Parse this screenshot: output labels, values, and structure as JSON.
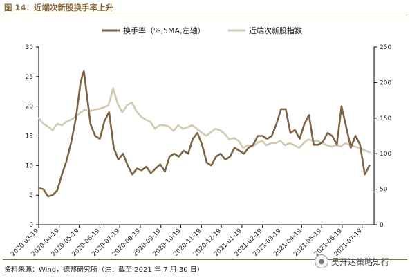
{
  "title": "图 14：近端次新股换手率上升",
  "source": "资料来源：Wind，德邦研究所（注：截至 2021 年 7 月 30 日）",
  "watermark": {
    "text": "吴开达策略知行",
    "icon": "wechat-icon"
  },
  "colors": {
    "turnover": "#7d6341",
    "index": "#d2caaf",
    "accent": "#8a6a3b"
  },
  "chart_data": {
    "type": "line",
    "x": [
      "2020-03-19",
      "2020-04-19",
      "2020-05-19",
      "2020-06-19",
      "2020-07-19",
      "2020-08-19",
      "2020-09-19",
      "2020-10-19",
      "2020-11-19",
      "2020-12-19",
      "2021-01-19",
      "2021-02-19",
      "2021-03-19",
      "2021-04-19",
      "2021-05-19",
      "2021-06-19",
      "2021-07-19"
    ],
    "xlabels": [
      "2020-03-19",
      "2020-04-19",
      "2020-05-19",
      "2020-06-19",
      "2020-07-19",
      "2020-08-19",
      "2020-09-19",
      "2020-10-19",
      "2020-11-19",
      "2020-12-19",
      "2021-01-19",
      "2021-02-19",
      "2021-03-19",
      "2021-04-19",
      "2021-05-19",
      "2021-06-19",
      "2021-07-19"
    ],
    "y_left": {
      "ticks": [
        0,
        5,
        10,
        15,
        20,
        25,
        30
      ],
      "lim": [
        0,
        30
      ]
    },
    "y_right": {
      "ticks": [
        0,
        50,
        100,
        150,
        200,
        250
      ],
      "lim": [
        0,
        250
      ]
    },
    "grid": false,
    "legend": "top",
    "series": [
      {
        "name": "换手率（%,5MA,左轴）",
        "axis": "left",
        "x": [
          "2020-03-19",
          "2020-03-26",
          "2020-04-02",
          "2020-04-09",
          "2020-04-16",
          "2020-04-23",
          "2020-04-30",
          "2020-05-07",
          "2020-05-14",
          "2020-05-21",
          "2020-05-26",
          "2020-05-31",
          "2020-06-05",
          "2020-06-12",
          "2020-06-19",
          "2020-06-26",
          "2020-07-03",
          "2020-07-10",
          "2020-07-17",
          "2020-07-24",
          "2020-07-31",
          "2020-08-07",
          "2020-08-14",
          "2020-08-21",
          "2020-08-28",
          "2020-09-04",
          "2020-09-11",
          "2020-09-18",
          "2020-09-25",
          "2020-10-02",
          "2020-10-09",
          "2020-10-16",
          "2020-10-23",
          "2020-10-30",
          "2020-11-06",
          "2020-11-13",
          "2020-11-20",
          "2020-11-27",
          "2020-12-04",
          "2020-12-11",
          "2020-12-18",
          "2020-12-25",
          "2021-01-01",
          "2021-01-08",
          "2021-01-15",
          "2021-01-22",
          "2021-01-29",
          "2021-02-05",
          "2021-02-12",
          "2021-02-19",
          "2021-02-26",
          "2021-03-05",
          "2021-03-12",
          "2021-03-19",
          "2021-03-26",
          "2021-04-02",
          "2021-04-09",
          "2021-04-16",
          "2021-04-23",
          "2021-04-30",
          "2021-05-07",
          "2021-05-14",
          "2021-05-21",
          "2021-05-28",
          "2021-06-04",
          "2021-06-11",
          "2021-06-18",
          "2021-06-25",
          "2021-07-02",
          "2021-07-09",
          "2021-07-16",
          "2021-07-23",
          "2021-07-30"
        ],
        "values": [
          6.2,
          6.0,
          4.8,
          5.0,
          5.8,
          8.5,
          10.8,
          14.0,
          18.0,
          24.0,
          26.0,
          21.5,
          17.0,
          15.0,
          14.5,
          17.5,
          19.0,
          13.0,
          11.0,
          12.0,
          10.0,
          8.5,
          9.5,
          9.2,
          9.8,
          8.7,
          9.5,
          10.2,
          9.0,
          11.5,
          12.0,
          11.5,
          12.5,
          12.0,
          14.5,
          15.5,
          13.5,
          10.5,
          10.0,
          11.5,
          12.0,
          11.0,
          11.5,
          13.0,
          12.5,
          12.0,
          13.0,
          13.5,
          15.0,
          15.0,
          14.5,
          15.0,
          17.0,
          19.5,
          19.5,
          15.5,
          16.0,
          14.5,
          17.0,
          18.5,
          13.5,
          13.5,
          14.0,
          15.5,
          15.0,
          13.5,
          20.0,
          16.5,
          13.0,
          15.0,
          13.5,
          8.5,
          10.0
        ]
      },
      {
        "name": "近端次新股指数",
        "axis": "right",
        "x": [
          "2020-03-19",
          "2020-03-26",
          "2020-04-02",
          "2020-04-09",
          "2020-04-16",
          "2020-04-23",
          "2020-04-30",
          "2020-05-07",
          "2020-05-14",
          "2020-05-21",
          "2020-05-28",
          "2020-06-04",
          "2020-06-11",
          "2020-06-18",
          "2020-06-25",
          "2020-07-02",
          "2020-07-09",
          "2020-07-16",
          "2020-07-23",
          "2020-07-30",
          "2020-08-06",
          "2020-08-13",
          "2020-08-20",
          "2020-08-27",
          "2020-09-03",
          "2020-09-10",
          "2020-09-17",
          "2020-09-24",
          "2020-10-01",
          "2020-10-08",
          "2020-10-15",
          "2020-10-22",
          "2020-10-29",
          "2020-11-05",
          "2020-11-12",
          "2020-11-19",
          "2020-11-26",
          "2020-12-03",
          "2020-12-10",
          "2020-12-17",
          "2020-12-24",
          "2020-12-31",
          "2021-01-07",
          "2021-01-14",
          "2021-01-21",
          "2021-01-28",
          "2021-02-04",
          "2021-02-11",
          "2021-02-18",
          "2021-02-25",
          "2021-03-04",
          "2021-03-11",
          "2021-03-18",
          "2021-03-25",
          "2021-04-01",
          "2021-04-08",
          "2021-04-15",
          "2021-04-22",
          "2021-04-29",
          "2021-05-06",
          "2021-05-13",
          "2021-05-20",
          "2021-05-27",
          "2021-06-03",
          "2021-06-10",
          "2021-06-17",
          "2021-06-24",
          "2021-07-01",
          "2021-07-08",
          "2021-07-15",
          "2021-07-22",
          "2021-07-30"
        ],
        "values": [
          150,
          142,
          138,
          133,
          142,
          140,
          145,
          148,
          152,
          158,
          162,
          160,
          162,
          163,
          165,
          168,
          192,
          170,
          158,
          168,
          172,
          160,
          152,
          148,
          145,
          135,
          140,
          140,
          138,
          132,
          140,
          135,
          137,
          140,
          135,
          130,
          125,
          130,
          135,
          133,
          128,
          120,
          122,
          118,
          108,
          112,
          110,
          115,
          118,
          112,
          115,
          115,
          118,
          112,
          115,
          112,
          108,
          115,
          120,
          118,
          118,
          115,
          112,
          110,
          112,
          110,
          115,
          112,
          110,
          108,
          105,
          102
        ]
      }
    ]
  }
}
